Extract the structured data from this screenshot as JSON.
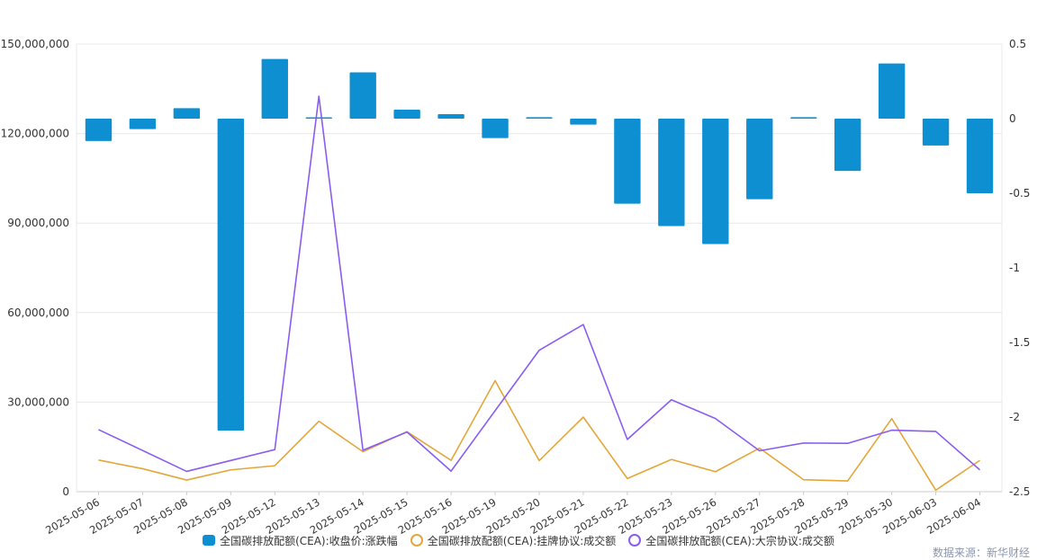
{
  "chart_data": {
    "type": "bar+line",
    "categories": [
      "2025-05-06",
      "2025-05-07",
      "2025-05-08",
      "2025-05-09",
      "2025-05-12",
      "2025-05-13",
      "2025-05-14",
      "2025-05-15",
      "2025-05-16",
      "2025-05-19",
      "2025-05-20",
      "2025-05-21",
      "2025-05-22",
      "2025-05-23",
      "2025-05-26",
      "2025-05-27",
      "2025-05-28",
      "2025-05-29",
      "2025-05-30",
      "2025-06-03",
      "2025-06-04"
    ],
    "left_axis": {
      "ylim": [
        0,
        150000000
      ],
      "ticks": [
        "0",
        "30,000,000",
        "60,000,000",
        "90,000,000",
        "120,000,000",
        "150,000,000"
      ],
      "tick_values": [
        0,
        30000000,
        60000000,
        90000000,
        120000000,
        150000000
      ]
    },
    "right_axis": {
      "ylim": [
        -2.5,
        0.5
      ],
      "ticks": [
        "-2.5",
        "-2",
        "-1.5",
        "-1",
        "-0.5",
        "0",
        "0.5"
      ],
      "tick_values": [
        -2.5,
        -2,
        -1.5,
        -1,
        -0.5,
        0,
        0.5
      ]
    },
    "series": [
      {
        "name": "全国碳排放配额(CEA):收盘价:涨跌幅",
        "type": "bar",
        "axis": "right",
        "color": "#0d8fd1",
        "values": [
          -0.15,
          -0.07,
          0.07,
          -2.09,
          0.4,
          0,
          0.31,
          0.06,
          0.03,
          -0.13,
          0.01,
          -0.04,
          -0.57,
          -0.72,
          -0.84,
          -0.54,
          0.01,
          -0.35,
          0.37,
          -0.18,
          -0.5
        ]
      },
      {
        "name": "全国碳排放配额(CEA):挂牌协议:成交额",
        "type": "line",
        "axis": "left",
        "color": "#e4a63a",
        "values": [
          10600000,
          7700000,
          3900000,
          7300000,
          8700000,
          23600000,
          13400000,
          20100000,
          10500000,
          37200000,
          10400000,
          25000000,
          4400000,
          10800000,
          6700000,
          14600000,
          4000000,
          3600000,
          24500000,
          500000,
          10500000
        ]
      },
      {
        "name": "全国碳排放配额(CEA):大宗协议:成交额",
        "type": "line",
        "axis": "left",
        "color": "#8a5cf0",
        "values": [
          20800000,
          null,
          6800000,
          null,
          14100000,
          132500000,
          13900000,
          20000000,
          6900000,
          null,
          47400000,
          56000000,
          17500000,
          30800000,
          24500000,
          13700000,
          16300000,
          16200000,
          20600000,
          20200000,
          7300000
        ]
      }
    ],
    "source": "数据来源：新华财经"
  },
  "legend": [
    {
      "label": "全国碳排放配额(CEA):收盘价:涨跌幅",
      "kind": "bar",
      "color": "#0d8fd1"
    },
    {
      "label": "全国碳排放配额(CEA):挂牌协议:成交额",
      "kind": "ring",
      "color": "#e4a63a"
    },
    {
      "label": "全国碳排放配额(CEA):大宗协议:成交额",
      "kind": "ring",
      "color": "#8a5cf0"
    }
  ]
}
